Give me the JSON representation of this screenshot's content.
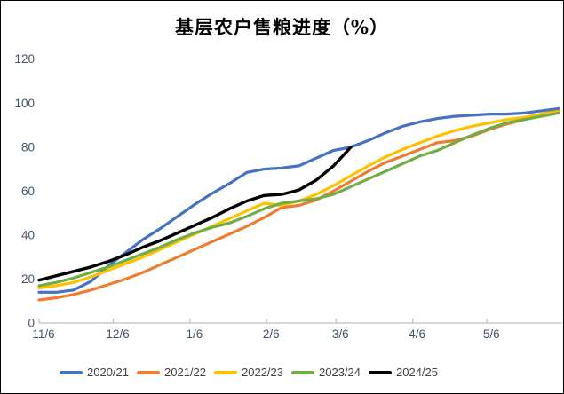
{
  "window": {
    "background": "#ffffff",
    "border_color": "#000000"
  },
  "chart_data": {
    "type": "line",
    "title": "基层农户售粮进度（%）",
    "xlabel": "",
    "ylabel": "",
    "ylim": [
      0,
      120
    ],
    "y_ticks": [
      0,
      20,
      40,
      60,
      80,
      100,
      120
    ],
    "x_tick_labels": [
      "11/6",
      "12/6",
      "1/6",
      "2/6",
      "3/6",
      "4/6",
      "5/6"
    ],
    "x_tick_day_offsets": [
      0,
      30,
      61,
      92,
      120,
      151,
      181
    ],
    "x_total_days": 210,
    "grid": "off",
    "legend_position": "bottom",
    "axis_color": "#BFBFBF",
    "tick_label_color": "#44546A",
    "legend_text_color": "#404040",
    "x": [
      "11/6",
      "11/13",
      "11/20",
      "11/27",
      "12/4",
      "12/11",
      "12/18",
      "12/25",
      "1/1",
      "1/8",
      "1/15",
      "1/22",
      "1/29",
      "2/5",
      "2/12",
      "2/19",
      "2/26",
      "3/5",
      "3/12",
      "3/19",
      "3/26",
      "4/2",
      "4/9",
      "4/16",
      "4/23",
      "4/30",
      "5/7",
      "5/14",
      "5/21",
      "5/28",
      "6/4"
    ],
    "series": [
      {
        "name": "2020/21",
        "color": "#4472C4",
        "values": [
          14,
          14,
          15,
          19,
          26,
          32,
          38,
          43,
          48.5,
          54,
          59,
          63.5,
          68.5,
          70,
          70.5,
          71.5,
          75,
          78.5,
          80,
          83,
          86.5,
          89.5,
          91.5,
          93,
          94,
          94.5,
          95,
          95,
          95.5,
          96.5,
          97.5
        ]
      },
      {
        "name": "2021/22",
        "color": "#ED7D31",
        "values": [
          10.5,
          11.5,
          13,
          15,
          17.5,
          20,
          23,
          26.5,
          30,
          33.5,
          37,
          40.5,
          44,
          48,
          52.5,
          53.5,
          56,
          60,
          64.5,
          69,
          73,
          76,
          79,
          82,
          83,
          85,
          88,
          90.5,
          92.5,
          95,
          96.5
        ]
      },
      {
        "name": "2022/23",
        "color": "#FFC000",
        "values": [
          16,
          17,
          18.5,
          21,
          24,
          27,
          30,
          33.5,
          37,
          40.5,
          44,
          47.5,
          51,
          54.5,
          53.5,
          55.5,
          58.5,
          62.5,
          67,
          71.5,
          75.5,
          79,
          82,
          85,
          87.5,
          89.5,
          91,
          92.5,
          93.5,
          95,
          96
        ]
      },
      {
        "name": "2023/24",
        "color": "#70AD47",
        "values": [
          17,
          18.5,
          20.5,
          23,
          25.5,
          28.5,
          31.5,
          34.5,
          38,
          41,
          43.5,
          45.5,
          48.5,
          52,
          54.5,
          55.5,
          56.5,
          58.5,
          62,
          65.5,
          69,
          72.5,
          76,
          78.5,
          82,
          85.5,
          88.5,
          91,
          92.5,
          94,
          95.5
        ]
      },
      {
        "name": "2024/25",
        "color": "#000000",
        "values": [
          19.5,
          21.5,
          23.5,
          25.5,
          28,
          31,
          34.5,
          37.5,
          41,
          44.5,
          48,
          52,
          55.5,
          58,
          58.5,
          60.5,
          65,
          71.5,
          80
        ]
      }
    ]
  }
}
